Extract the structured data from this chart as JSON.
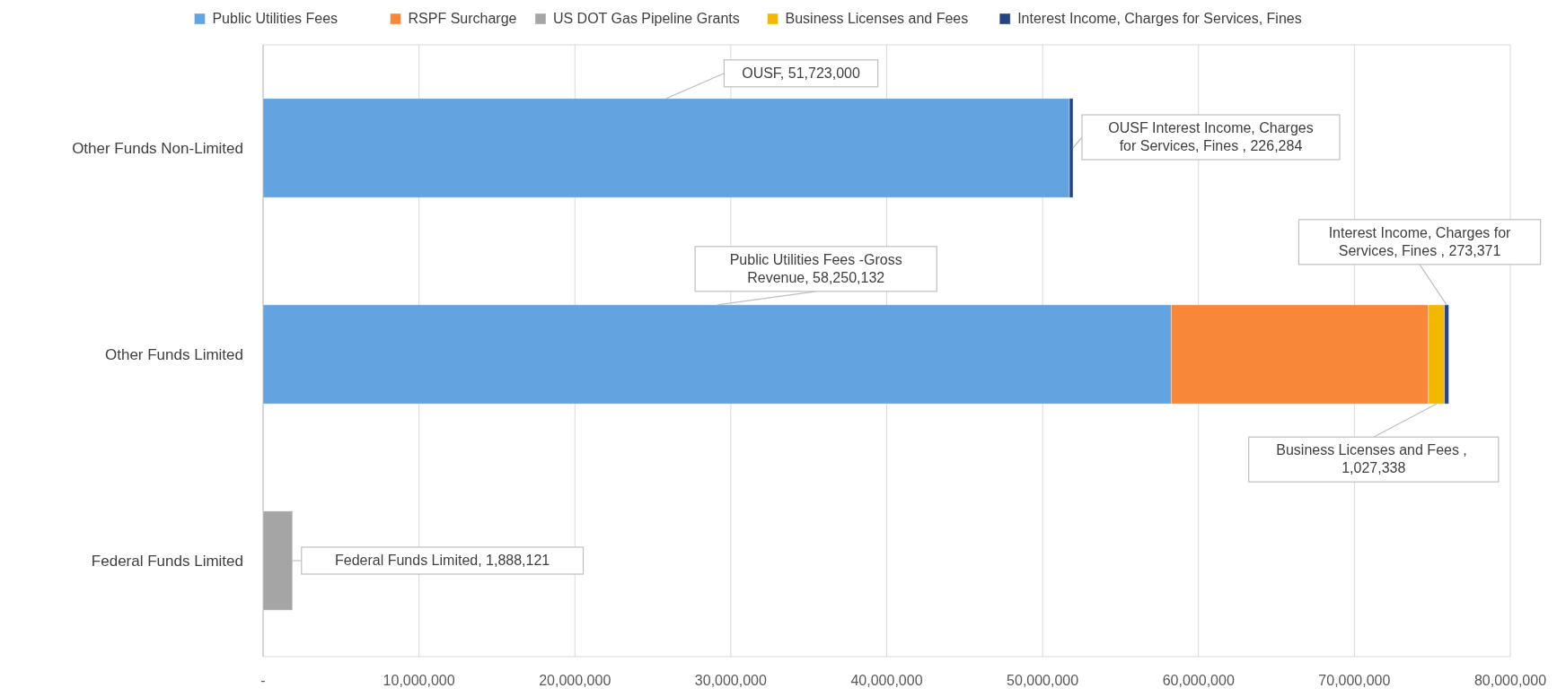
{
  "chart_data": {
    "type": "bar",
    "orientation": "horizontal",
    "stacked": true,
    "categories": [
      "Other Funds Non-Limited",
      "Other Funds Limited",
      "Federal Funds Limited"
    ],
    "series": [
      {
        "name": "Public Utilities Fees",
        "color": "#62a3e0",
        "values": [
          51723000,
          58250132,
          null
        ],
        "value_labels": [
          "OUSF,  51,723,000",
          "Public Utilities Fees -Gross Revenue,  58,250,132",
          null
        ]
      },
      {
        "name": "RSPF Surcharge",
        "color": "#f9873a",
        "values": [
          null,
          16500000,
          null
        ]
      },
      {
        "name": "US DOT Gas Pipeline Grants",
        "color": "#a5a5a5",
        "values": [
          null,
          null,
          1888121
        ],
        "value_labels": [
          null,
          null,
          "Federal Funds Limited,  1,888,121"
        ]
      },
      {
        "name": "Business Licenses and Fees",
        "color": "#f2b800",
        "values": [
          null,
          1027338,
          null
        ],
        "value_labels": [
          null,
          "Business Licenses and Fees ,  1,027,338",
          null
        ]
      },
      {
        "name": "Interest Income, Charges for Services, Fines",
        "color": "#26457c",
        "values": [
          226284,
          273371,
          null
        ],
        "value_labels": [
          "OUSF  Interest Income, Charges for Services, Fines ,  226,284",
          "Interest Income, Charges for Services, Fines ,  273,371",
          null
        ]
      }
    ],
    "xlim": [
      0,
      80000000
    ],
    "xticks": [
      {
        "value": 0,
        "label": "-"
      },
      {
        "value": 10000000,
        "label": "10,000,000"
      },
      {
        "value": 20000000,
        "label": "20,000,000"
      },
      {
        "value": 30000000,
        "label": "30,000,000"
      },
      {
        "value": 40000000,
        "label": "40,000,000"
      },
      {
        "value": 50000000,
        "label": "50,000,000"
      },
      {
        "value": 60000000,
        "label": "60,000,000"
      },
      {
        "value": 70000000,
        "label": "70,000,000"
      },
      {
        "value": 80000000,
        "label": "80,000,000"
      }
    ],
    "grid": "x",
    "legend": "top"
  }
}
